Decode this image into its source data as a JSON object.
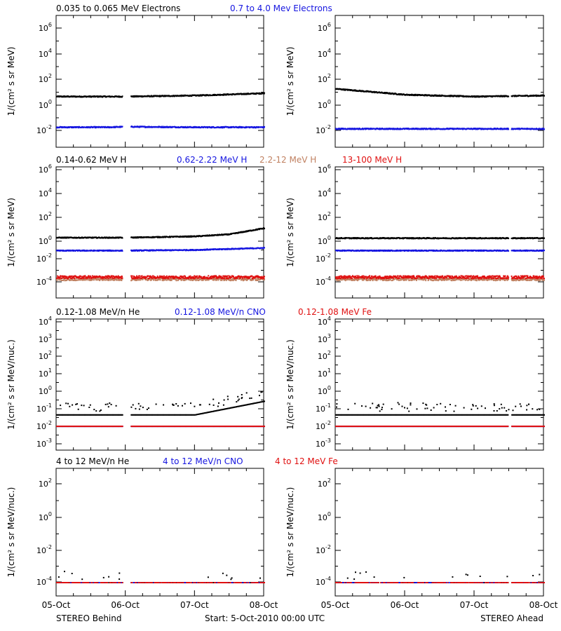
{
  "footer": {
    "left": "STEREO Behind",
    "center": "Start:  5-Oct-2010 00:00 UTC",
    "right": "STEREO Ahead"
  },
  "colors": {
    "black": "#000000",
    "blue": "#1515e0",
    "tan": "#c08060",
    "red": "#e01010"
  },
  "x_ticks": [
    "05-Oct",
    "06-Oct",
    "07-Oct",
    "08-Oct"
  ],
  "panels": [
    {
      "ylabel": "1/(cm² s sr MeV)",
      "legend": [
        {
          "text": "0.035 to 0.065 MeV Electrons",
          "color": "#000000"
        },
        {
          "text": "0.7 to 4.0 Mev Electrons",
          "color": "#1515e0"
        }
      ],
      "yticks": [
        {
          "base": "10",
          "exp": "6"
        },
        {
          "base": "10",
          "exp": "4"
        },
        {
          "base": "10",
          "exp": "2"
        },
        {
          "base": "10",
          "exp": "0"
        },
        {
          "base": "10",
          "exp": "-2"
        }
      ]
    },
    {
      "ylabel": "1/(cm² s sr MeV)",
      "legend": [
        {
          "text": "0.14-0.62 MeV H",
          "color": "#000000"
        },
        {
          "text": "0.62-2.22 MeV H",
          "color": "#1515e0"
        },
        {
          "text": "2.2-12 MeV H",
          "color": "#c08060"
        },
        {
          "text": "13-100 MeV H",
          "color": "#e01010"
        }
      ],
      "yticks": [
        {
          "base": "10",
          "exp": "6"
        },
        {
          "base": "10",
          "exp": "4"
        },
        {
          "base": "10",
          "exp": "2"
        },
        {
          "base": "10",
          "exp": "0"
        },
        {
          "base": "10",
          "exp": "-2"
        },
        {
          "base": "10",
          "exp": "-4"
        }
      ]
    },
    {
      "ylabel": "1/(cm² s sr MeV/nuc.)",
      "legend": [
        {
          "text": "0.12-1.08 MeV/n He",
          "color": "#000000"
        },
        {
          "text": "0.12-1.08 MeV/n CNO",
          "color": "#1515e0"
        },
        {
          "text": "0.12-1.08 MeV Fe",
          "color": "#e01010"
        }
      ],
      "yticks": [
        {
          "base": "10",
          "exp": "4"
        },
        {
          "base": "10",
          "exp": "3"
        },
        {
          "base": "10",
          "exp": "2"
        },
        {
          "base": "10",
          "exp": "1"
        },
        {
          "base": "10",
          "exp": "0"
        },
        {
          "base": "10",
          "exp": "-1"
        },
        {
          "base": "10",
          "exp": "-2"
        },
        {
          "base": "10",
          "exp": "-3"
        }
      ]
    },
    {
      "ylabel": "1/(cm² s sr MeV/nuc.)",
      "legend": [
        {
          "text": "4 to 12 MeV/n He",
          "color": "#000000"
        },
        {
          "text": "4 to 12 MeV/n CNO",
          "color": "#1515e0"
        },
        {
          "text": "4 to 12 MeV Fe",
          "color": "#e01010"
        }
      ],
      "yticks": [
        {
          "base": "10",
          "exp": "2"
        },
        {
          "base": "10",
          "exp": "0"
        },
        {
          "base": "10",
          "exp": "-2"
        },
        {
          "base": "10",
          "exp": "-4"
        }
      ]
    }
  ],
  "chart_data": [
    {
      "type": "scatter",
      "panel": "electrons",
      "spacecraft": "STEREO Behind",
      "y_scale": "log",
      "ylim": [
        0.003,
        3000000
      ],
      "xlim": [
        "05-Oct",
        "08-Oct"
      ],
      "series": [
        {
          "name": "0.035 to 0.065 MeV Electrons",
          "color": "#000000",
          "x": [
            "05-Oct",
            "05-Oct 18:00",
            "06-Oct",
            "07-Oct",
            "08-Oct"
          ],
          "y": [
            5,
            5,
            5,
            6,
            9
          ]
        },
        {
          "name": "0.7 to 4.0 Mev Electrons",
          "color": "#1515e0",
          "x": [
            "05-Oct",
            "05-Oct 18:00",
            "06-Oct",
            "07-Oct",
            "08-Oct"
          ],
          "y": [
            0.02,
            0.02,
            0.022,
            0.02,
            0.02
          ]
        }
      ]
    },
    {
      "type": "scatter",
      "panel": "electrons",
      "spacecraft": "STEREO Ahead",
      "y_scale": "log",
      "ylim": [
        0.003,
        3000000
      ],
      "xlim": [
        "05-Oct",
        "08-Oct"
      ],
      "series": [
        {
          "name": "0.035 to 0.065 MeV Electrons",
          "color": "#000000",
          "x": [
            "05-Oct",
            "06-Oct",
            "07-Oct",
            "08-Oct"
          ],
          "y": [
            20,
            7,
            5,
            6
          ]
        },
        {
          "name": "0.7 to 4.0 Mev Electrons",
          "color": "#1515e0",
          "x": [
            "05-Oct",
            "06-Oct",
            "07-Oct",
            "08-Oct"
          ],
          "y": [
            0.015,
            0.015,
            0.015,
            0.015
          ]
        }
      ]
    },
    {
      "type": "scatter",
      "panel": "protons",
      "spacecraft": "STEREO Behind",
      "y_scale": "log",
      "ylim": [
        4e-05,
        2000000
      ],
      "xlim": [
        "05-Oct",
        "08-Oct"
      ],
      "series": [
        {
          "name": "0.14-0.62 MeV H",
          "color": "#000000",
          "x": [
            "05-Oct",
            "06-Oct",
            "07-Oct",
            "07-Oct 12:00",
            "08-Oct"
          ],
          "y": [
            1,
            1,
            1.3,
            2,
            7
          ]
        },
        {
          "name": "0.62-2.22 MeV H",
          "color": "#1515e0",
          "x": [
            "05-Oct",
            "06-Oct",
            "07-Oct",
            "08-Oct"
          ],
          "y": [
            0.07,
            0.07,
            0.08,
            0.12
          ]
        },
        {
          "name": "2.2-12 MeV H",
          "color": "#c08060",
          "x": [
            "05-Oct",
            "08-Oct"
          ],
          "y": [
            0.0002,
            0.0002
          ]
        },
        {
          "name": "13-100 MeV H",
          "color": "#e01010",
          "x": [
            "05-Oct",
            "08-Oct"
          ],
          "y": [
            0.0003,
            0.0003
          ]
        }
      ]
    },
    {
      "type": "scatter",
      "panel": "protons",
      "spacecraft": "STEREO Ahead",
      "y_scale": "log",
      "ylim": [
        4e-05,
        2000000
      ],
      "xlim": [
        "05-Oct",
        "08-Oct"
      ],
      "series": [
        {
          "name": "0.14-0.62 MeV H",
          "color": "#000000",
          "x": [
            "05-Oct",
            "08-Oct"
          ],
          "y": [
            0.9,
            0.9
          ]
        },
        {
          "name": "0.62-2.22 MeV H",
          "color": "#1515e0",
          "x": [
            "05-Oct",
            "08-Oct"
          ],
          "y": [
            0.07,
            0.07
          ]
        },
        {
          "name": "2.2-12 MeV H",
          "color": "#c08060",
          "x": [
            "05-Oct",
            "08-Oct"
          ],
          "y": [
            0.0002,
            0.0002
          ]
        },
        {
          "name": "13-100 MeV H",
          "color": "#e01010",
          "x": [
            "05-Oct",
            "08-Oct"
          ],
          "y": [
            0.0003,
            0.0003
          ]
        }
      ]
    },
    {
      "type": "scatter",
      "panel": "heavy-ions-low",
      "spacecraft": "STEREO Behind",
      "y_scale": "log",
      "ylim": [
        0.0005,
        10000
      ],
      "xlim": [
        "05-Oct",
        "08-Oct"
      ],
      "series": [
        {
          "name": "0.12-1.08 MeV/n He",
          "color": "#000000",
          "x": [
            "05-Oct",
            "07-Oct",
            "08-Oct"
          ],
          "y": [
            0.05,
            0.05,
            0.3
          ]
        },
        {
          "name": "0.12-1.08 MeV/n CNO",
          "color": "#1515e0",
          "x": [
            "05-Oct",
            "08-Oct"
          ],
          "y": [
            0.011,
            0.011
          ]
        },
        {
          "name": "0.12-1.08 MeV Fe",
          "color": "#e01010",
          "x": [
            "05-Oct",
            "08-Oct"
          ],
          "y": [
            0.011,
            0.011
          ]
        }
      ]
    },
    {
      "type": "scatter",
      "panel": "heavy-ions-low",
      "spacecraft": "STEREO Ahead",
      "y_scale": "log",
      "ylim": [
        0.0005,
        10000
      ],
      "xlim": [
        "05-Oct",
        "08-Oct"
      ],
      "series": [
        {
          "name": "0.12-1.08 MeV/n He",
          "color": "#000000",
          "x": [
            "05-Oct",
            "08-Oct"
          ],
          "y": [
            0.05,
            0.05
          ]
        },
        {
          "name": "0.12-1.08 MeV/n CNO",
          "color": "#1515e0",
          "x": [
            "05-Oct",
            "08-Oct"
          ],
          "y": [
            0.011,
            0.011
          ]
        },
        {
          "name": "0.12-1.08 MeV Fe",
          "color": "#e01010",
          "x": [
            "05-Oct",
            "08-Oct"
          ],
          "y": [
            0.011,
            0.011
          ]
        }
      ]
    },
    {
      "type": "scatter",
      "panel": "heavy-ions-high",
      "spacecraft": "STEREO Behind",
      "y_scale": "log",
      "ylim": [
        5e-06,
        1000
      ],
      "xlim": [
        "05-Oct",
        "08-Oct"
      ],
      "series": [
        {
          "name": "4 to 12 MeV/n He",
          "color": "#000000",
          "x": [
            "05-Oct",
            "08-Oct"
          ],
          "y": [
            0.0001,
            0.0001
          ]
        },
        {
          "name": "4 to 12 MeV/n CNO",
          "color": "#1515e0",
          "x": [
            "05-Oct",
            "08-Oct"
          ],
          "y": [
            0.0001,
            0.0001
          ]
        },
        {
          "name": "4 to 12 MeV Fe",
          "color": "#e01010",
          "x": [
            "05-Oct",
            "08-Oct"
          ],
          "y": [
            0.0001,
            0.0001
          ]
        }
      ]
    },
    {
      "type": "scatter",
      "panel": "heavy-ions-high",
      "spacecraft": "STEREO Ahead",
      "y_scale": "log",
      "ylim": [
        5e-06,
        1000
      ],
      "xlim": [
        "05-Oct",
        "08-Oct"
      ],
      "series": [
        {
          "name": "4 to 12 MeV/n He",
          "color": "#000000",
          "x": [
            "05-Oct",
            "08-Oct"
          ],
          "y": [
            0.0001,
            0.0001
          ]
        },
        {
          "name": "4 to 12 MeV/n CNO",
          "color": "#1515e0",
          "x": [
            "05-Oct",
            "08-Oct"
          ],
          "y": [
            0.0001,
            0.0001
          ]
        },
        {
          "name": "4 to 12 MeV Fe",
          "color": "#e01010",
          "x": [
            "05-Oct",
            "08-Oct"
          ],
          "y": [
            0.0001,
            0.0001
          ]
        }
      ]
    }
  ]
}
